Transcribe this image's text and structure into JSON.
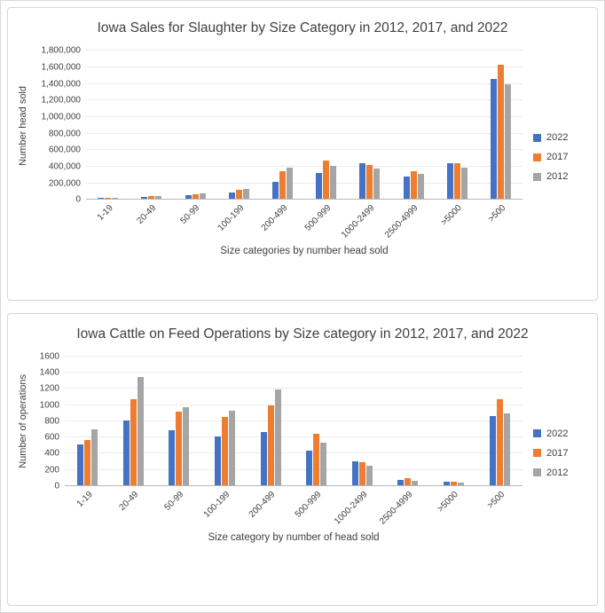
{
  "accent_colors": {
    "blue_2022": "#4472C4",
    "orange_2017": "#ED7D31",
    "gray_2012": "#A5A5A5"
  },
  "chart_data": [
    {
      "type": "bar",
      "title": "Iowa Sales for Slaughter by Size Category in 2012, 2017, and 2022",
      "xlabel": "Size categories by number head sold",
      "ylabel": "Number head sold",
      "categories": [
        "1-19",
        "20-49",
        "50-99",
        "100-199",
        "200-499",
        "500-999",
        "1000-2499",
        "2500-4999",
        ">5000",
        ">500"
      ],
      "series": [
        {
          "name": "2022",
          "color": "#4472C4",
          "values": [
            4000,
            20000,
            45000,
            80000,
            205000,
            310000,
            430000,
            265000,
            430000,
            1450000
          ]
        },
        {
          "name": "2017",
          "color": "#ED7D31",
          "values": [
            6000,
            30000,
            55000,
            110000,
            330000,
            460000,
            410000,
            330000,
            430000,
            1620000
          ]
        },
        {
          "name": "2012",
          "color": "#A5A5A5",
          "values": [
            5000,
            30000,
            60000,
            120000,
            370000,
            400000,
            365000,
            300000,
            370000,
            1380000
          ]
        }
      ],
      "ylim": [
        0,
        1800000
      ],
      "ytick_step": 200000,
      "ytick_format": "comma",
      "grid": true,
      "legend_position": "right"
    },
    {
      "type": "bar",
      "title": "Iowa Cattle on Feed Operations by Size category in 2012, 2017, and 2022",
      "xlabel": "Size category by number of head sold",
      "ylabel": "Number of operations",
      "categories": [
        "1-19",
        "20-49",
        "50-99",
        "100-199",
        "200-499",
        "500-999",
        "1000-2499",
        "2500-4999",
        ">5000",
        ">500"
      ],
      "series": [
        {
          "name": "2022",
          "color": "#4472C4",
          "values": [
            500,
            800,
            680,
            600,
            660,
            430,
            300,
            70,
            40,
            860
          ]
        },
        {
          "name": "2017",
          "color": "#ED7D31",
          "values": [
            560,
            1060,
            910,
            840,
            990,
            640,
            290,
            90,
            45,
            1060
          ]
        },
        {
          "name": "2012",
          "color": "#A5A5A5",
          "values": [
            690,
            1340,
            960,
            920,
            1180,
            530,
            240,
            60,
            35,
            890
          ]
        }
      ],
      "ylim": [
        0,
        1600
      ],
      "ytick_step": 200,
      "ytick_format": "plain",
      "grid": true,
      "legend_position": "right"
    }
  ]
}
